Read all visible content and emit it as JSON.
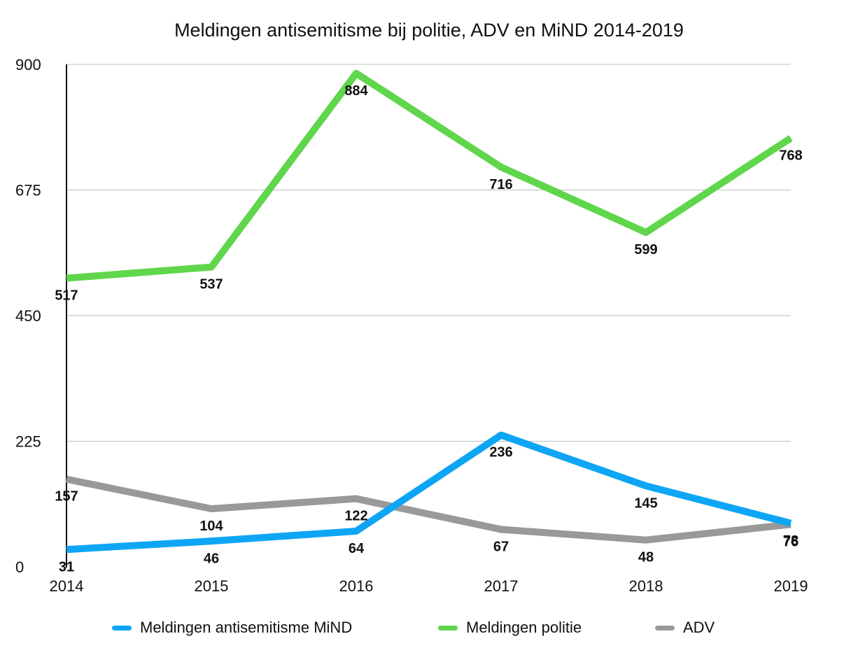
{
  "chart_data": {
    "type": "line",
    "title": "Meldingen antisemitisme bij politie, ADV en MiND 2014-2019",
    "xlabel": "",
    "ylabel": "",
    "categories": [
      "2014",
      "2015",
      "2016",
      "2017",
      "2018",
      "2019"
    ],
    "ylim": [
      0,
      900
    ],
    "yticks": [
      "0",
      "225",
      "450",
      "675",
      "900"
    ],
    "grid": true,
    "legend_position": "bottom",
    "series": [
      {
        "name": "Meldingen antisemitisme MiND",
        "color": "#0ea5f5",
        "values": [
          31,
          46,
          64,
          236,
          145,
          78
        ]
      },
      {
        "name": "Meldingen politie",
        "color": "#5fd64b",
        "values": [
          517,
          537,
          884,
          716,
          599,
          768
        ]
      },
      {
        "name": "ADV",
        "color": "#999999",
        "values": [
          157,
          104,
          122,
          67,
          48,
          76
        ]
      }
    ]
  }
}
